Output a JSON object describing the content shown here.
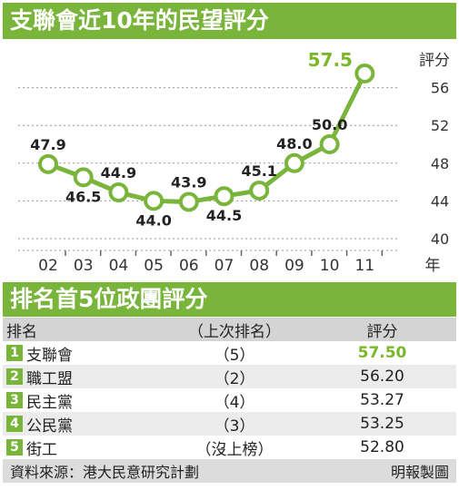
{
  "chart_title": "支聯會近10年的民望評分",
  "chart_data": {
    "type": "line",
    "title": "支聯會近10年的民望評分",
    "categories": [
      "02",
      "03",
      "04",
      "05",
      "06",
      "07",
      "08",
      "09",
      "10",
      "11"
    ],
    "x_unit_label": "年",
    "values": [
      47.9,
      46.5,
      44.9,
      44.0,
      43.9,
      44.5,
      45.1,
      48.0,
      50.0,
      57.5
    ],
    "value_labels": [
      "47.9",
      "46.5",
      "44.9",
      "44.0",
      "43.9",
      "44.5",
      "45.1",
      "48.0",
      "50.0",
      "57.5"
    ],
    "ylabel": "評分",
    "y_ticks": [
      "40",
      "44",
      "48",
      "52",
      "56"
    ],
    "ylim": [
      40,
      59
    ],
    "grid": "dotted horizontal",
    "line_color": "#79b43b",
    "highlight_color": "#7ab82a"
  },
  "table": {
    "title": "排名首5位政團評分",
    "headers": [
      "排名",
      "（上次排名）",
      "評分"
    ],
    "rows": [
      {
        "rank": "1",
        "name": "支聯會",
        "prev": "（5）",
        "score": "57.50"
      },
      {
        "rank": "2",
        "name": "職工盟",
        "prev": "（2）",
        "score": "56.20"
      },
      {
        "rank": "3",
        "name": "民主黨",
        "prev": "（4）",
        "score": "53.27"
      },
      {
        "rank": "4",
        "name": "公民黨",
        "prev": "（3）",
        "score": "53.25"
      },
      {
        "rank": "5",
        "name": "街工",
        "prev": "（沒上榜）",
        "score": "52.80"
      }
    ]
  },
  "footer": {
    "source": "資料來源：港大民意研究計劃",
    "credit": "明報製圖"
  }
}
